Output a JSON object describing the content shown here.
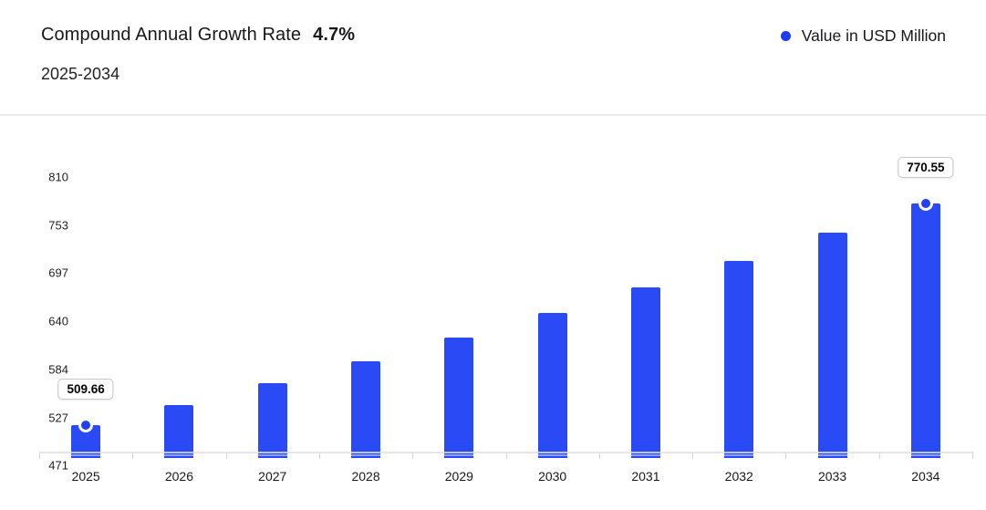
{
  "header": {
    "title": "Compound Annual Growth Rate",
    "cagr_value": "4.7%",
    "subtitle": "2025-2034",
    "legend_label": "Value in USD Million"
  },
  "chart_data": {
    "type": "bar",
    "title": "Compound Annual Growth Rate 4.7%",
    "subtitle": "2025-2034",
    "unit": "USD Million",
    "categories": [
      "2025",
      "2026",
      "2027",
      "2028",
      "2029",
      "2030",
      "2031",
      "2032",
      "2033",
      "2034"
    ],
    "values": [
      509.66,
      533.61,
      558.69,
      584.95,
      612.45,
      641.23,
      671.37,
      702.92,
      735.96,
      770.55
    ],
    "y_ticks": [
      471,
      527,
      584,
      640,
      697,
      753,
      810
    ],
    "ylim": [
      471,
      810
    ],
    "grid": "off",
    "legend": {
      "label": "Value in USD Million",
      "position": "top-right"
    },
    "annotations": [
      {
        "category": "2025",
        "label": "509.66",
        "marker": "dot"
      },
      {
        "category": "2034",
        "label": "770.55",
        "marker": "dot"
      }
    ],
    "colors": {
      "bar": "#2a4af5",
      "bar_base_stripe": "#7f92f9",
      "marker_dot": "#2340ee",
      "marker_ring": "#ffffff",
      "legend_dot": "#1c3cf0",
      "axis_line": "#e0e0e0",
      "tick": "#d6d6d6",
      "tooltip_bg": "#ffffff",
      "tooltip_border": "#c9c9c9",
      "text": "#18181b",
      "divider": "#ebebeb"
    }
  }
}
